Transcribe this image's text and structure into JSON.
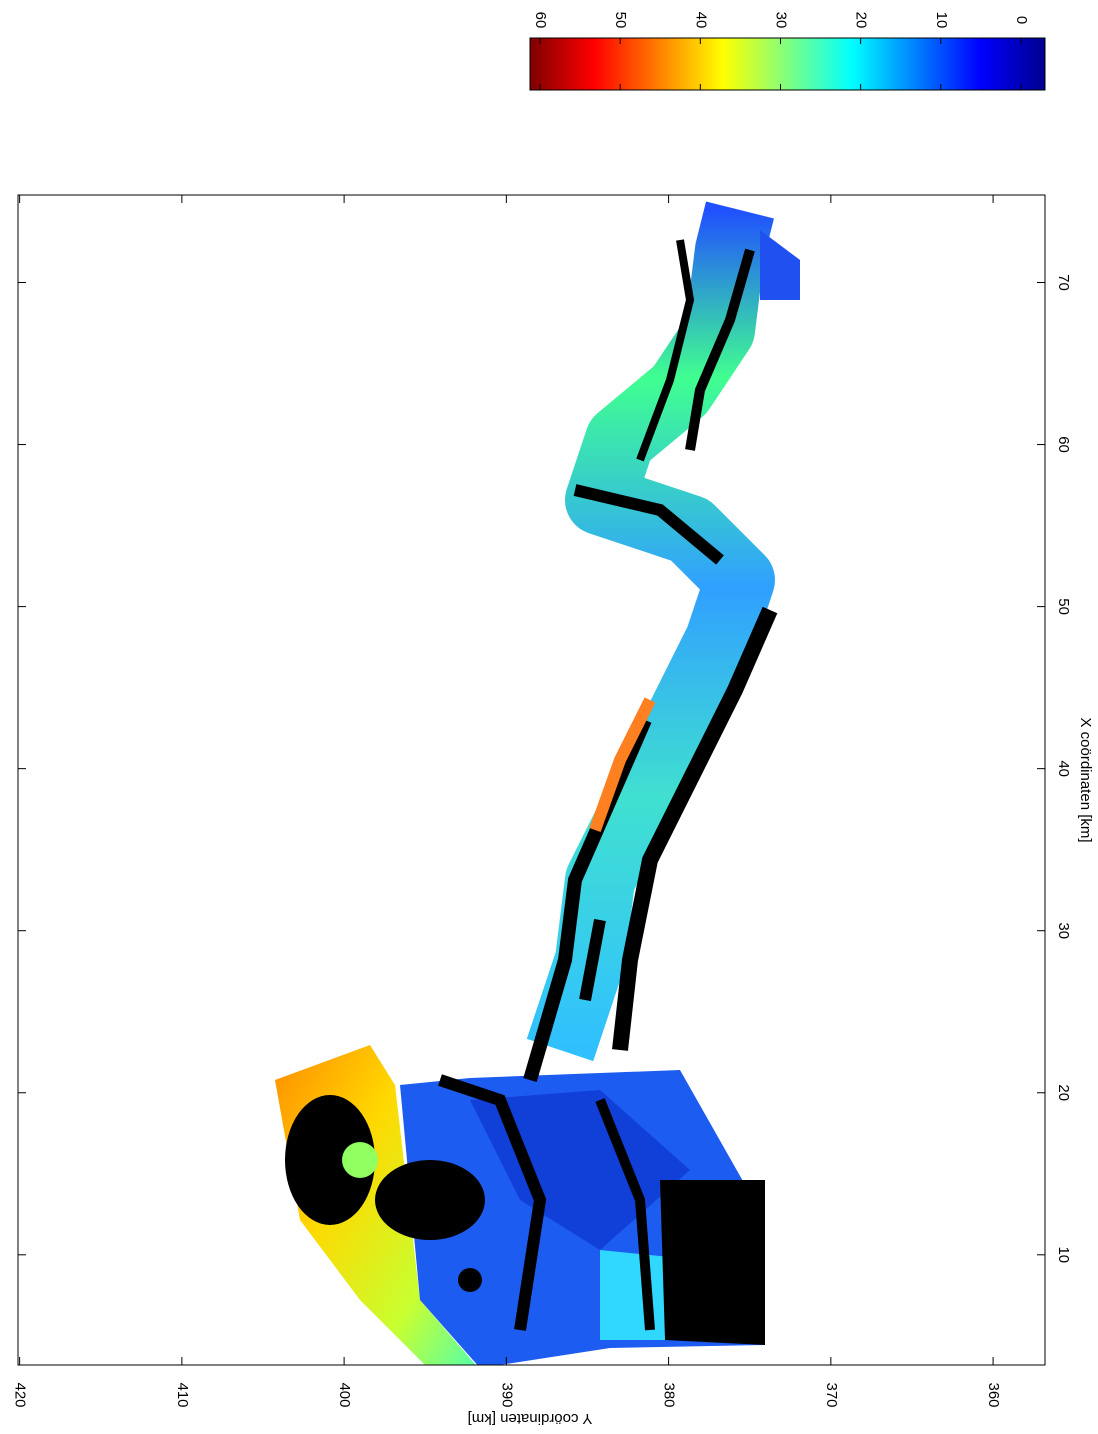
{
  "chart_data": {
    "type": "heatmap",
    "xlabel": "X coördinaten [km]",
    "ylabel": "Y coördinaten [km]",
    "xlim": [
      3.2,
      75.4
    ],
    "xticks": [
      10,
      20,
      30,
      40,
      50,
      60,
      70
    ],
    "ylim": [
      420.1,
      356.8
    ],
    "yticks": [
      420,
      410,
      400,
      390,
      380,
      370,
      360
    ],
    "colormap": "jet",
    "colorbar": {
      "lim": [
        61.25,
        -3
      ],
      "ticks": [
        60,
        50,
        40,
        30,
        20,
        10,
        0
      ]
    }
  }
}
